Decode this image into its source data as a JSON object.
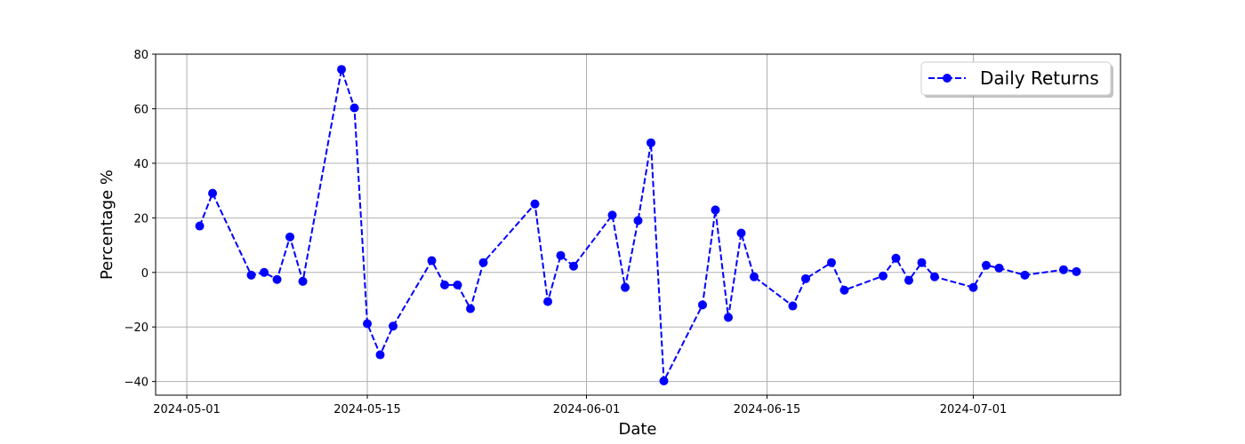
{
  "chart_data": {
    "type": "line",
    "title": "",
    "xlabel": "Date",
    "ylabel": "Percentage %",
    "xlim": [
      "2024-04-28T14:00",
      "2024-07-12T10:00"
    ],
    "ylim": [
      -45,
      80
    ],
    "grid": true,
    "legend_placement": "top-right",
    "x_ticks": [
      "2024-05-01",
      "2024-05-15",
      "2024-06-01",
      "2024-06-15",
      "2024-07-01"
    ],
    "y_ticks": [
      -40,
      -20,
      0,
      20,
      40,
      60,
      80
    ],
    "y_tick_labels": [
      "−40",
      "−20",
      "0",
      "20",
      "40",
      "60",
      "80"
    ],
    "series": [
      {
        "name": "Daily Returns",
        "color": "#0000ff",
        "line_style": "dashed",
        "marker": "circle",
        "x": [
          "2024-05-02",
          "2024-05-03",
          "2024-05-06",
          "2024-05-07",
          "2024-05-08",
          "2024-05-09",
          "2024-05-10",
          "2024-05-13",
          "2024-05-14",
          "2024-05-15",
          "2024-05-16",
          "2024-05-17",
          "2024-05-20",
          "2024-05-21",
          "2024-05-22",
          "2024-05-23",
          "2024-05-24",
          "2024-05-28",
          "2024-05-29",
          "2024-05-30",
          "2024-05-31",
          "2024-06-03",
          "2024-06-04",
          "2024-06-05",
          "2024-06-06",
          "2024-06-07",
          "2024-06-10",
          "2024-06-11",
          "2024-06-12",
          "2024-06-13",
          "2024-06-14",
          "2024-06-17",
          "2024-06-18",
          "2024-06-20",
          "2024-06-21",
          "2024-06-24",
          "2024-06-25",
          "2024-06-26",
          "2024-06-27",
          "2024-06-28",
          "2024-07-01",
          "2024-07-02",
          "2024-07-03",
          "2024-07-05",
          "2024-07-08",
          "2024-07-09"
        ],
        "y": [
          17.0,
          29.0,
          -1.0,
          0.0,
          -2.6,
          13.0,
          -3.3,
          74.4,
          60.3,
          -18.8,
          -30.2,
          -19.7,
          4.3,
          -4.6,
          -4.6,
          -13.3,
          3.6,
          25.1,
          -10.7,
          6.2,
          2.3,
          21.0,
          -5.5,
          19.0,
          47.5,
          -39.8,
          -11.9,
          22.9,
          -16.5,
          14.4,
          -1.6,
          -12.3,
          -2.3,
          3.6,
          -6.5,
          -1.3,
          5.2,
          -2.9,
          3.6,
          -1.6,
          -5.5,
          2.6,
          1.6,
          -1.0,
          1.0,
          0.3
        ]
      }
    ]
  }
}
